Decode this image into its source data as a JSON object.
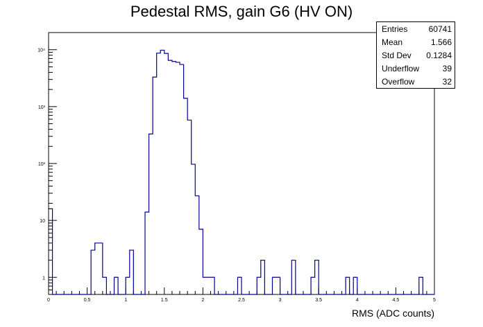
{
  "chart_data": {
    "type": "bar",
    "title": "Pedestal RMS, gain G6 (HV ON)",
    "xlabel": "RMS (ADC counts)",
    "ylabel": "",
    "xlim": [
      0,
      5
    ],
    "ylim": [
      0.5,
      20000
    ],
    "yscale": "log",
    "bin_width": 0.05,
    "bins": [
      {
        "x": 0.0,
        "y": 16
      },
      {
        "x": 0.55,
        "y": 3
      },
      {
        "x": 0.6,
        "y": 4
      },
      {
        "x": 0.65,
        "y": 4
      },
      {
        "x": 0.7,
        "y": 1
      },
      {
        "x": 0.85,
        "y": 1
      },
      {
        "x": 1.0,
        "y": 1
      },
      {
        "x": 1.05,
        "y": 3
      },
      {
        "x": 1.25,
        "y": 14
      },
      {
        "x": 1.3,
        "y": 330
      },
      {
        "x": 1.35,
        "y": 3300
      },
      {
        "x": 1.4,
        "y": 8700
      },
      {
        "x": 1.45,
        "y": 9800
      },
      {
        "x": 1.5,
        "y": 8600
      },
      {
        "x": 1.55,
        "y": 6500
      },
      {
        "x": 1.6,
        "y": 6200
      },
      {
        "x": 1.65,
        "y": 6000
      },
      {
        "x": 1.7,
        "y": 5500
      },
      {
        "x": 1.75,
        "y": 1400
      },
      {
        "x": 1.8,
        "y": 580
      },
      {
        "x": 1.85,
        "y": 97
      },
      {
        "x": 1.9,
        "y": 27
      },
      {
        "x": 1.95,
        "y": 7
      },
      {
        "x": 2.0,
        "y": 1
      },
      {
        "x": 2.05,
        "y": 1
      },
      {
        "x": 2.1,
        "y": 1
      },
      {
        "x": 2.45,
        "y": 1
      },
      {
        "x": 2.7,
        "y": 1
      },
      {
        "x": 2.75,
        "y": 2
      },
      {
        "x": 2.9,
        "y": 1
      },
      {
        "x": 2.95,
        "y": 1
      },
      {
        "x": 3.15,
        "y": 2
      },
      {
        "x": 3.4,
        "y": 1
      },
      {
        "x": 3.45,
        "y": 2
      },
      {
        "x": 3.85,
        "y": 1
      },
      {
        "x": 3.95,
        "y": 1
      },
      {
        "x": 4.8,
        "y": 1
      }
    ],
    "x_tick_labels": [
      "0",
      "0.5",
      "1",
      "1.5",
      "2",
      "2.5",
      "3",
      "3.5",
      "4",
      "4.5",
      "5"
    ],
    "y_tick_labels": [
      {
        "value": 1,
        "label": "1"
      },
      {
        "value": 10,
        "label": "10"
      },
      {
        "value": 100,
        "label": "10²"
      },
      {
        "value": 1000,
        "label": "10³"
      },
      {
        "value": 10000,
        "label": "10⁴"
      }
    ],
    "line_color": "#000099",
    "stats": [
      {
        "name": "Entries",
        "value": "60741"
      },
      {
        "name": "Mean",
        "value": "1.566"
      },
      {
        "name": "Std Dev",
        "value": "0.1284"
      },
      {
        "name": "Underflow",
        "value": "39"
      },
      {
        "name": "Overflow",
        "value": "32"
      }
    ]
  }
}
